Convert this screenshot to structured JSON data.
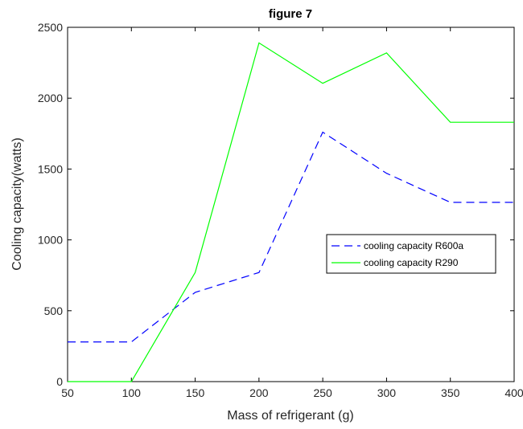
{
  "chart_data": {
    "type": "line",
    "title": "figure 7",
    "xlabel": "Mass of refrigerant (g)",
    "ylabel": "Cooling capacity(watts)",
    "xlim": [
      50,
      400
    ],
    "ylim": [
      0,
      2500
    ],
    "xticks": [
      50,
      100,
      150,
      200,
      250,
      300,
      350,
      400
    ],
    "yticks": [
      0,
      500,
      1000,
      1500,
      2000,
      2500
    ],
    "grid": false,
    "legend_position": "center-right",
    "x": [
      50,
      100,
      150,
      200,
      250,
      300,
      350,
      400
    ],
    "series": [
      {
        "name": "cooling capacity R600a",
        "values": [
          280,
          280,
          630,
          770,
          1760,
          1470,
          1265,
          1265
        ],
        "color": "#0000ff",
        "dashed": true
      },
      {
        "name": "cooling capacity R290",
        "values": [
          0,
          0,
          770,
          2390,
          2105,
          2320,
          1830,
          1830
        ],
        "color": "#00ff00",
        "dashed": false
      }
    ]
  }
}
